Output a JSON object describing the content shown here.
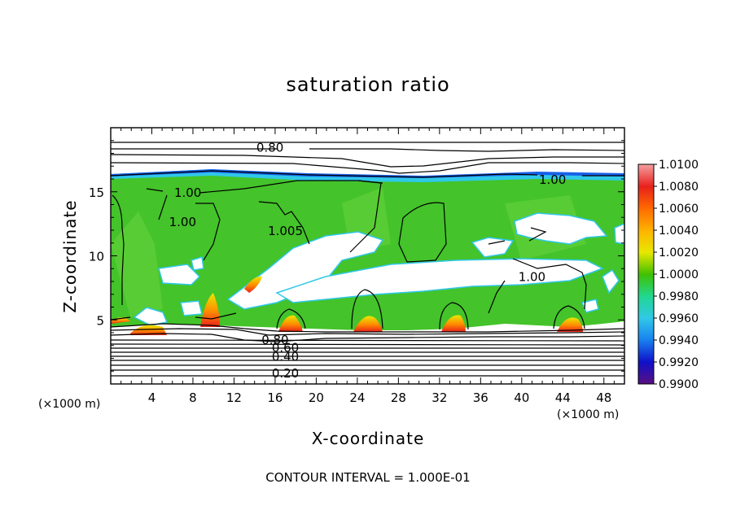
{
  "chart_data": {
    "type": "heatmap",
    "title": "saturation ratio",
    "xlabel": "X-coordinate",
    "ylabel": "Z-coordinate",
    "x_unit": "(×1000 m)",
    "x_ticks": [
      4,
      8,
      12,
      16,
      20,
      24,
      28,
      32,
      36,
      40,
      44,
      48
    ],
    "y_ticks": [
      5,
      10,
      15
    ],
    "xlim": [
      0,
      50
    ],
    "ylim": [
      0,
      20
    ],
    "colorbar": {
      "labels": [
        "1.0100",
        "1.0080",
        "1.0060",
        "1.0040",
        "1.0020",
        "1.0000",
        "0.9980",
        "0.9960",
        "0.9940",
        "0.9920",
        "0.9900"
      ],
      "values": [
        1.01,
        1.008,
        1.006,
        1.004,
        1.002,
        1.0,
        0.998,
        0.996,
        0.994,
        0.992,
        0.99
      ],
      "colors": [
        "#f4a0a0",
        "#e8201c",
        "#ff6a00",
        "#ffb200",
        "#e8e800",
        "#40c000",
        "#20d890",
        "#30c8e8",
        "#1880f0",
        "#1010c8",
        "#5a1080"
      ]
    },
    "contour_labels": [
      {
        "text": "0.80",
        "x": 15.5,
        "z": 18.5
      },
      {
        "text": "1.00",
        "x": 7.5,
        "z": 15.0
      },
      {
        "text": "1.00",
        "x": 7.0,
        "z": 12.7
      },
      {
        "text": "1.005",
        "x": 17.0,
        "z": 12.0
      },
      {
        "text": "1.00",
        "x": 43.0,
        "z": 16.0
      },
      {
        "text": "1.00",
        "x": 41.0,
        "z": 8.4
      },
      {
        "text": "0.80",
        "x": 16.0,
        "z": 3.5
      },
      {
        "text": "0.60",
        "x": 17.0,
        "z": 2.9
      },
      {
        "text": "0.40",
        "x": 17.0,
        "z": 2.2
      },
      {
        "text": "0.20",
        "x": 17.0,
        "z": 0.9
      }
    ],
    "grid": false,
    "legend": "right"
  },
  "footnote": "CONTOUR INTERVAL = 1.000E-01"
}
